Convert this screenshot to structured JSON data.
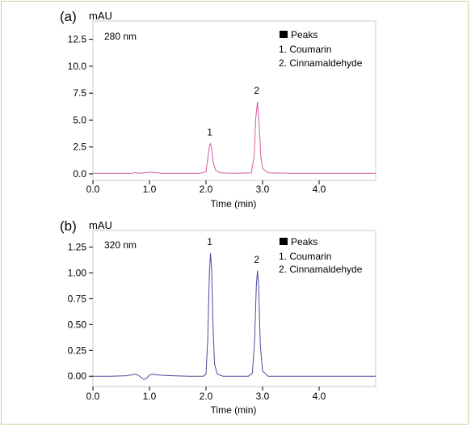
{
  "chart_data": [
    {
      "type": "line",
      "panel_label": "(a)",
      "y_unit": "mAU",
      "wavelength": "280 nm",
      "xlabel": "Time (min)",
      "x_ticks": [
        "0.0",
        "1.0",
        "2.0",
        "3.0",
        "4.0"
      ],
      "y_ticks": [
        "0.0",
        "2.5",
        "5.0",
        "7.5",
        "10.0",
        "12.5"
      ],
      "xlim": [
        0,
        5.0
      ],
      "ylim": [
        -0.6,
        14.2
      ],
      "line_color": "#d65aa0",
      "legend": {
        "title": "Peaks",
        "items": [
          "1. Coumarin",
          "2. Cinnamaldehyde"
        ]
      },
      "peaks": [
        {
          "label": "1",
          "x": 2.08,
          "y": 2.8
        },
        {
          "label": "2",
          "x": 2.91,
          "y": 6.7
        }
      ],
      "series": [
        {
          "x": [
            0.0,
            0.5,
            0.7,
            0.75,
            0.8,
            0.9,
            1.0,
            1.1,
            1.2,
            1.5,
            1.9,
            2.0,
            2.03,
            2.06,
            2.08,
            2.1,
            2.13,
            2.17,
            2.25,
            2.5,
            2.8,
            2.85,
            2.88,
            2.91,
            2.94,
            2.97,
            3.0,
            3.1,
            3.5,
            4.0,
            4.5,
            5.0
          ],
          "y": [
            0.05,
            0.05,
            0.05,
            0.12,
            0.05,
            0.1,
            0.15,
            0.12,
            0.05,
            0.05,
            0.05,
            0.2,
            1.4,
            2.6,
            2.8,
            2.3,
            1.0,
            0.35,
            0.1,
            0.05,
            0.1,
            1.6,
            5.2,
            6.7,
            4.6,
            1.6,
            0.5,
            0.1,
            0.05,
            0.05,
            0.05,
            0.05
          ]
        }
      ]
    },
    {
      "type": "line",
      "panel_label": "(b)",
      "y_unit": "mAU",
      "wavelength": "320 nm",
      "xlabel": "Time (min)",
      "x_ticks": [
        "0.0",
        "1.0",
        "2.0",
        "3.0",
        "4.0"
      ],
      "y_ticks": [
        "0.00",
        "0.25",
        "0.50",
        "0.75",
        "1.00",
        "1.25"
      ],
      "xlim": [
        0,
        5.0
      ],
      "ylim": [
        -0.1,
        1.41
      ],
      "line_color": "#4a4a9c",
      "legend": {
        "title": "Peaks",
        "items": [
          "1. Coumarin",
          "2. Cinnamaldehyde"
        ]
      },
      "peaks": [
        {
          "label": "1",
          "x": 2.08,
          "y": 1.19
        },
        {
          "label": "2",
          "x": 2.91,
          "y": 1.02
        }
      ],
      "series": [
        {
          "x": [
            0.0,
            0.3,
            0.6,
            0.7,
            0.75,
            0.8,
            0.85,
            0.9,
            0.95,
            1.0,
            1.05,
            1.1,
            1.2,
            1.4,
            1.7,
            1.95,
            2.0,
            2.03,
            2.06,
            2.08,
            2.1,
            2.12,
            2.15,
            2.2,
            2.3,
            2.5,
            2.75,
            2.82,
            2.86,
            2.89,
            2.91,
            2.93,
            2.96,
            3.0,
            3.1,
            3.3,
            3.6,
            4.0,
            4.5,
            5.0
          ],
          "y": [
            0.0,
            0.0,
            0.005,
            0.015,
            0.02,
            0.01,
            -0.01,
            -0.03,
            -0.02,
            0.01,
            0.02,
            0.015,
            0.01,
            0.005,
            0.0,
            0.0,
            0.02,
            0.35,
            1.0,
            1.19,
            1.02,
            0.55,
            0.12,
            0.02,
            0.0,
            0.0,
            0.0,
            0.03,
            0.35,
            0.88,
            1.02,
            0.88,
            0.3,
            0.05,
            0.0,
            0.0,
            0.0,
            0.0,
            0.0,
            0.0
          ]
        }
      ]
    }
  ]
}
